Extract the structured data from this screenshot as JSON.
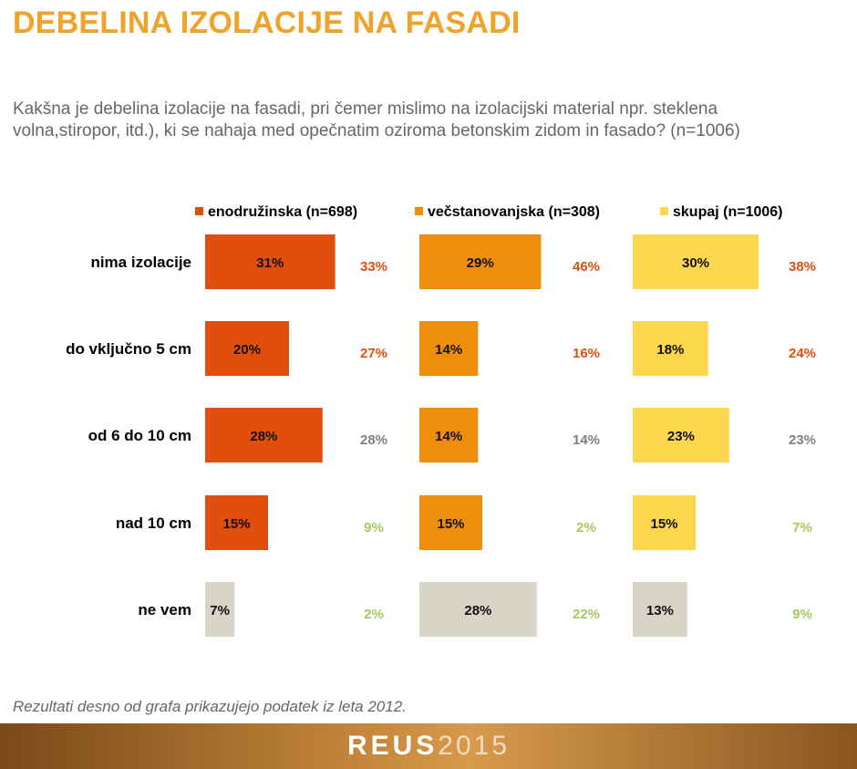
{
  "title": "DEBELINA IZOLACIJE NA FASADI",
  "question": "Kakšna je debelina izolacije na fasadi, pri čemer mislimo na izolacijski material npr. steklena volna,stiropor, itd.), ki se nahaja med opečnatim oziroma betonskim zidom in fasado? (n=1006)",
  "note": "Rezultati desno od grafa prikazujejo podatek iz leta 2012.",
  "footer": {
    "brand": "REUS",
    "year": "2015"
  },
  "chart_data": {
    "type": "bar",
    "orientation": "horizontal",
    "categories": [
      "nima izolacije",
      "do vključno 5 cm",
      "od 6 do 10 cm",
      "nad 10 cm",
      "ne vem"
    ],
    "series": [
      {
        "name": "enodružinska (n=698)",
        "color": "#e04e0e",
        "values": [
          31,
          20,
          28,
          15,
          7
        ],
        "values_2012": [
          33,
          27,
          28,
          9,
          2
        ]
      },
      {
        "name": "večstanovanjska (n=308)",
        "color": "#ee8e0c",
        "values": [
          29,
          14,
          14,
          15,
          28
        ],
        "values_2012": [
          46,
          16,
          14,
          2,
          22
        ]
      },
      {
        "name": "skupaj (n=1006)",
        "color": "#fcd64c",
        "values": [
          30,
          18,
          23,
          15,
          13
        ],
        "values_2012": [
          38,
          24,
          23,
          7,
          9
        ]
      }
    ],
    "unknown_color": "#d8d4c8",
    "colors_2012": {
      "higher": "#e04e0e",
      "same": "#808080",
      "lower": "#a6c95a"
    },
    "unit": "%"
  }
}
